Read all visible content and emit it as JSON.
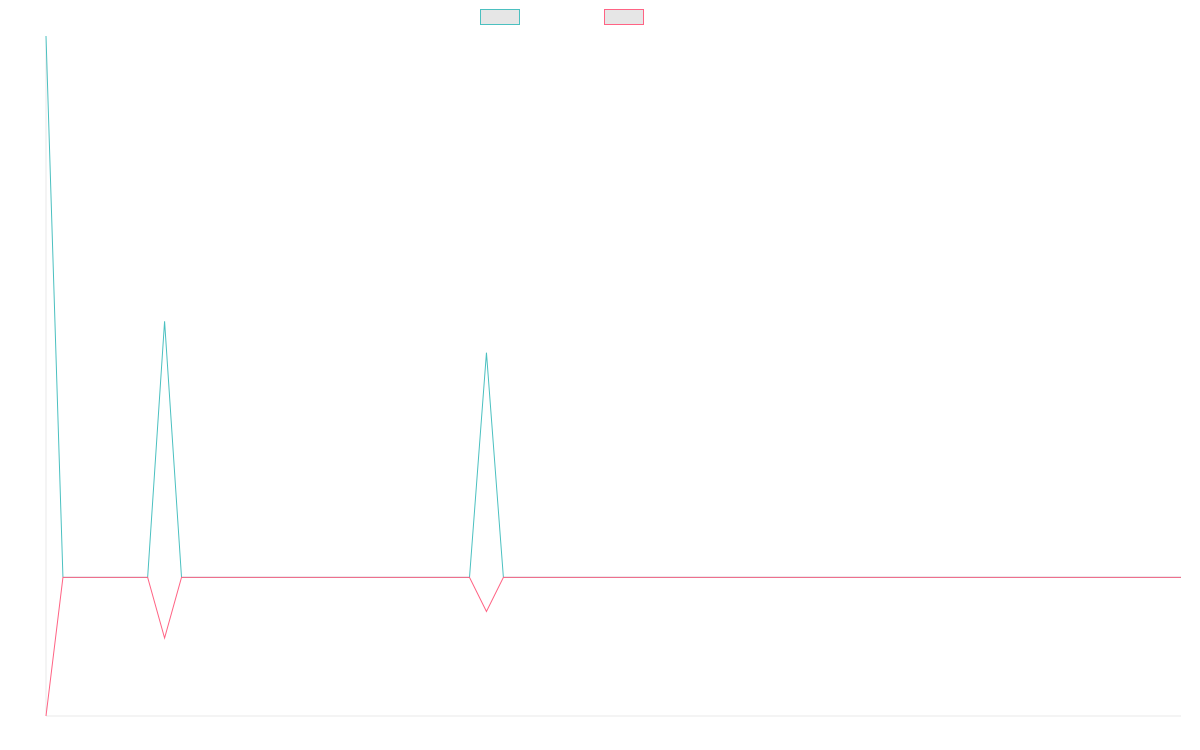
{
  "chart_data": {
    "type": "line",
    "title": "",
    "xlabel": "",
    "ylabel": "",
    "grid": false,
    "legend_position": "top-center",
    "x": [
      0,
      1,
      2,
      3,
      4,
      5,
      6,
      7,
      8,
      9,
      10,
      11,
      12,
      13,
      14,
      15,
      16,
      17,
      18,
      19,
      20,
      21,
      22,
      23,
      24,
      25,
      26,
      27,
      28,
      29,
      30,
      31,
      32,
      33,
      34,
      35,
      36,
      37,
      38,
      39,
      40,
      41,
      42,
      43,
      44,
      45,
      46,
      47,
      48,
      49,
      50,
      51,
      52,
      53,
      54,
      55,
      56,
      57,
      58,
      59,
      60,
      61,
      62,
      63,
      64,
      65,
      66,
      67
    ],
    "series": [
      {
        "color": "#4bc0c0",
        "values": [
          1,
          0,
          0,
          0,
          0,
          0,
          0,
          0.473,
          0,
          0,
          0,
          0,
          0,
          0,
          0,
          0,
          0,
          0,
          0,
          0,
          0,
          0,
          0,
          0,
          0,
          0,
          0.415,
          0,
          0,
          0,
          0,
          0,
          0,
          0,
          0,
          0,
          0,
          0,
          0,
          0,
          0,
          0,
          0,
          0,
          0,
          0,
          0,
          0,
          0,
          0,
          0,
          0,
          0,
          0,
          0,
          0,
          0,
          0,
          0,
          0,
          0,
          0,
          0,
          0,
          0,
          0,
          0,
          0
        ]
      },
      {
        "color": "#ff6384",
        "values": [
          -0.256,
          0,
          0,
          0,
          0,
          0,
          0,
          -0.112,
          0,
          0,
          0,
          0,
          0,
          0,
          0,
          0,
          0,
          0,
          0,
          0,
          0,
          0,
          0,
          0,
          0,
          0,
          -0.063,
          0,
          0,
          0,
          0,
          0,
          0,
          0,
          0,
          0,
          0,
          0,
          0,
          0,
          0,
          0,
          0,
          0,
          0,
          0,
          0,
          0,
          0,
          0,
          0,
          0,
          0,
          0,
          0,
          0,
          0,
          0,
          0,
          0,
          0,
          0,
          0,
          0,
          0,
          0,
          0,
          0
        ]
      }
    ],
    "xlim": [
      0,
      67
    ],
    "ylim": [
      -0.256,
      1
    ]
  }
}
